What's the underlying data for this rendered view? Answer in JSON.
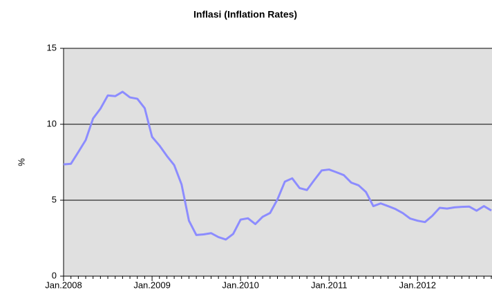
{
  "chart_data": {
    "type": "line",
    "title": "Inflasi (Inflation Rates)",
    "y_label": "%",
    "categories": [
      "Jan.2008",
      null,
      null,
      null,
      null,
      null,
      null,
      null,
      null,
      null,
      null,
      null,
      "Jan.2009",
      null,
      null,
      null,
      null,
      null,
      null,
      null,
      null,
      null,
      null,
      null,
      "Jan.2010",
      null,
      null,
      null,
      null,
      null,
      null,
      null,
      null,
      null,
      null,
      null,
      "Jan.2011",
      null,
      null,
      null,
      null,
      null,
      null,
      null,
      null,
      null,
      null,
      null,
      "Jan.2012",
      null,
      null,
      null,
      null,
      null,
      null,
      null,
      null,
      null,
      null
    ],
    "series": [
      {
        "name": "Inflasi",
        "color": "#8c8cff",
        "values": [
          7.36,
          7.4,
          8.17,
          8.96,
          10.38,
          11.03,
          11.9,
          11.85,
          12.14,
          11.77,
          11.68,
          11.06,
          9.17,
          8.6,
          7.92,
          7.31,
          6.04,
          3.65,
          2.71,
          2.75,
          2.83,
          2.57,
          2.41,
          2.78,
          3.72,
          3.81,
          3.43,
          3.91,
          4.16,
          5.05,
          6.22,
          6.44,
          5.8,
          5.67,
          6.33,
          6.96,
          7.02,
          6.84,
          6.65,
          6.16,
          5.98,
          5.54,
          4.61,
          4.79,
          4.61,
          4.42,
          4.15,
          3.79,
          3.65,
          3.56,
          3.97,
          4.5,
          4.45,
          4.53,
          4.56,
          4.58,
          4.31,
          4.61,
          4.32
        ]
      }
    ],
    "ylim": [
      0,
      15
    ],
    "yticks": [
      0,
      5,
      10,
      15
    ],
    "grid": true,
    "background": "#e0e0e0"
  }
}
